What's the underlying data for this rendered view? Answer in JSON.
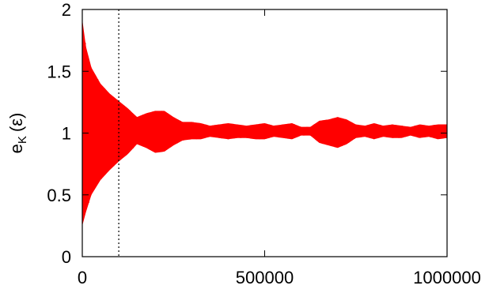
{
  "chart_data": {
    "type": "line",
    "title": "",
    "xlabel": "",
    "ylabel": {
      "base": "e",
      "subscript": "K",
      "unit": "(ε)"
    },
    "xlim": [
      0,
      1000000
    ],
    "ylim": [
      0,
      2
    ],
    "x_ticks": [
      {
        "value": 0,
        "label": "0"
      },
      {
        "value": 500000,
        "label": "500000"
      },
      {
        "value": 1000000,
        "label": "1000000"
      }
    ],
    "y_ticks": [
      {
        "value": 0,
        "label": "0"
      },
      {
        "value": 0.5,
        "label": "0.5"
      },
      {
        "value": 1,
        "label": "1"
      },
      {
        "value": 1.5,
        "label": "1.5"
      },
      {
        "value": 2,
        "label": "2"
      }
    ],
    "grid": false,
    "legend": "none",
    "series": [
      {
        "color": "#ff0000",
        "style": "dense-oscillation",
        "envelope": {
          "x": [
            0,
            10000,
            25000,
            50000,
            75000,
            100000,
            125000,
            150000,
            175000,
            200000,
            225000,
            250000,
            275000,
            300000,
            325000,
            350000,
            375000,
            400000,
            425000,
            450000,
            475000,
            500000,
            525000,
            550000,
            575000,
            600000,
            625000,
            650000,
            675000,
            700000,
            725000,
            750000,
            775000,
            800000,
            825000,
            850000,
            875000,
            900000,
            925000,
            950000,
            975000,
            1000000
          ],
          "upper": [
            1.92,
            1.7,
            1.53,
            1.4,
            1.32,
            1.26,
            1.2,
            1.13,
            1.16,
            1.18,
            1.18,
            1.13,
            1.09,
            1.09,
            1.08,
            1.06,
            1.07,
            1.08,
            1.07,
            1.06,
            1.07,
            1.08,
            1.06,
            1.07,
            1.08,
            1.05,
            1.05,
            1.1,
            1.11,
            1.13,
            1.11,
            1.07,
            1.06,
            1.08,
            1.06,
            1.07,
            1.06,
            1.05,
            1.07,
            1.06,
            1.07,
            1.07
          ],
          "lower": [
            0.25,
            0.36,
            0.5,
            0.62,
            0.7,
            0.77,
            0.83,
            0.91,
            0.88,
            0.84,
            0.85,
            0.9,
            0.94,
            0.95,
            0.95,
            0.97,
            0.96,
            0.95,
            0.96,
            0.96,
            0.95,
            0.95,
            0.97,
            0.96,
            0.95,
            0.98,
            0.98,
            0.92,
            0.9,
            0.88,
            0.91,
            0.96,
            0.97,
            0.95,
            0.97,
            0.96,
            0.96,
            0.98,
            0.96,
            0.97,
            0.95,
            0.96
          ]
        }
      }
    ],
    "annotations": [
      {
        "type": "vertical-dotted-line",
        "x": 100000,
        "color": "#000000"
      }
    ]
  }
}
